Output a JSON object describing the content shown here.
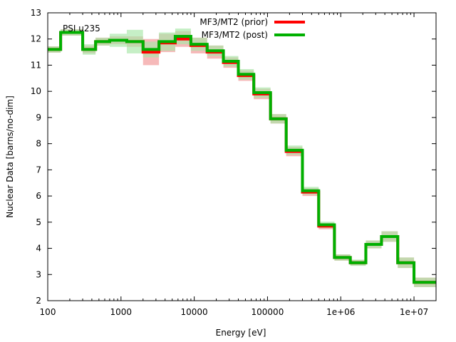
{
  "chart_data": {
    "type": "line",
    "title": "PSI u235",
    "xlabel": "Energy [eV]",
    "ylabel": "Nuclear Data [barns/no-dim]",
    "xscale": "log",
    "xlim": [
      100,
      20000000
    ],
    "ylim": [
      2,
      13
    ],
    "xticks": [
      {
        "value": 100,
        "label": "100"
      },
      {
        "value": 1000,
        "label": "1000"
      },
      {
        "value": 10000,
        "label": "10000"
      },
      {
        "value": 100000,
        "label": "100000"
      },
      {
        "value": 1000000,
        "label": "1e+06"
      },
      {
        "value": 10000000,
        "label": "1e+07"
      }
    ],
    "yticks": [
      2,
      3,
      4,
      5,
      6,
      7,
      8,
      9,
      10,
      11,
      12,
      13
    ],
    "edges": [
      100,
      150,
      300,
      450,
      700,
      1200,
      2000,
      3300,
      5500,
      9000,
      15000,
      25000,
      40000,
      65000,
      110000,
      180000,
      300000,
      500000,
      820000,
      1350000,
      2200000,
      3600000,
      6000000,
      10000000,
      20000000
    ],
    "series": [
      {
        "name": "MF3/MT2 (prior)",
        "color": "#ff0000",
        "band_color": "#f4a8a8",
        "values": [
          11.6,
          12.25,
          11.6,
          11.9,
          11.95,
          11.9,
          11.5,
          11.85,
          12.0,
          11.75,
          11.5,
          11.1,
          10.6,
          9.9,
          8.95,
          7.7,
          6.15,
          4.85,
          3.65,
          3.45,
          4.15,
          4.45,
          3.45,
          2.7
        ],
        "uncertainty": [
          0.12,
          0.12,
          0.15,
          0.15,
          0.15,
          0.2,
          0.5,
          0.35,
          0.3,
          0.3,
          0.25,
          0.2,
          0.2,
          0.2,
          0.18,
          0.18,
          0.15,
          0.12,
          0.12,
          0.1,
          0.15,
          0.2,
          0.2,
          0.18
        ]
      },
      {
        "name": "MF3/MT2 (post)",
        "color": "#00b000",
        "band_color": "#a8e6a8",
        "values": [
          11.6,
          12.25,
          11.6,
          11.9,
          11.95,
          11.9,
          11.6,
          11.9,
          12.1,
          11.8,
          11.55,
          11.15,
          10.65,
          9.95,
          8.95,
          7.75,
          6.2,
          4.9,
          3.65,
          3.45,
          4.15,
          4.45,
          3.45,
          2.7
        ],
        "uncertainty": [
          0.12,
          0.12,
          0.2,
          0.15,
          0.25,
          0.45,
          0.3,
          0.35,
          0.3,
          0.25,
          0.2,
          0.2,
          0.2,
          0.2,
          0.18,
          0.18,
          0.15,
          0.12,
          0.12,
          0.12,
          0.15,
          0.2,
          0.2,
          0.18
        ]
      }
    ],
    "legend": "top-right"
  }
}
